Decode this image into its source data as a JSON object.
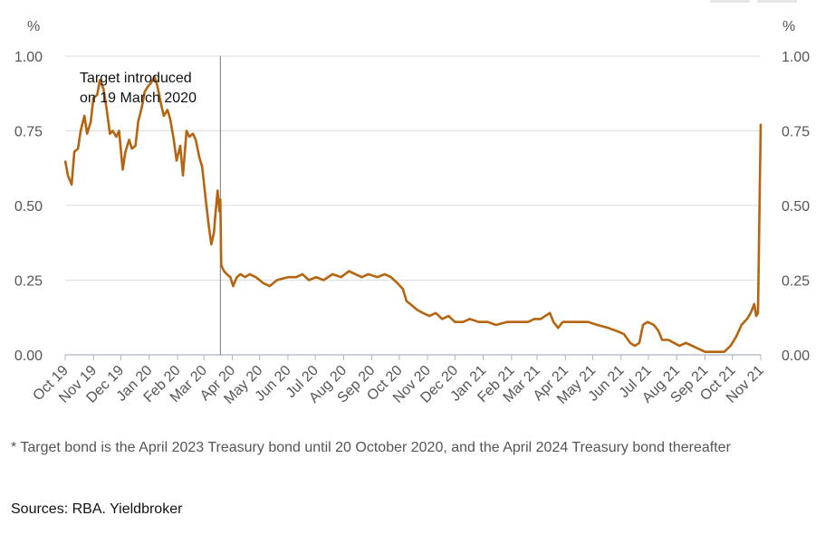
{
  "chart_data": {
    "type": "line",
    "y_unit_left": "%",
    "y_unit_right": "%",
    "ylim": [
      0,
      1.0
    ],
    "y_ticks": [
      "0.00",
      "0.25",
      "0.50",
      "0.75",
      "1.00"
    ],
    "x_ticks": [
      "Oct 19",
      "Nov 19",
      "Dec 19",
      "Jan 20",
      "Feb 20",
      "Mar 20",
      "Apr 20",
      "May 20",
      "Jun 20",
      "Jul 20",
      "Aug 20",
      "Sep 20",
      "Oct 20",
      "Nov 20",
      "Dec 20",
      "Jan 21",
      "Feb 21",
      "Mar 21",
      "Apr 21",
      "May 21",
      "Jun 21",
      "Jul 21",
      "Aug 21",
      "Sep 21",
      "Oct 21",
      "Nov 21"
    ],
    "x_start": "2019-10-01",
    "annotation": {
      "line1": "Target introduced",
      "line2": "on 19 March 2020",
      "date": "2020-03-19"
    },
    "series": [
      {
        "color": "#b5650f",
        "points": [
          [
            "2019-10-01",
            0.65
          ],
          [
            "2019-10-04",
            0.6
          ],
          [
            "2019-10-08",
            0.57
          ],
          [
            "2019-10-11",
            0.68
          ],
          [
            "2019-10-15",
            0.69
          ],
          [
            "2019-10-18",
            0.75
          ],
          [
            "2019-10-22",
            0.8
          ],
          [
            "2019-10-25",
            0.74
          ],
          [
            "2019-10-29",
            0.78
          ],
          [
            "2019-11-01",
            0.86
          ],
          [
            "2019-11-05",
            0.87
          ],
          [
            "2019-11-08",
            0.92
          ],
          [
            "2019-11-12",
            0.89
          ],
          [
            "2019-11-15",
            0.83
          ],
          [
            "2019-11-19",
            0.74
          ],
          [
            "2019-11-22",
            0.75
          ],
          [
            "2019-11-26",
            0.73
          ],
          [
            "2019-11-29",
            0.75
          ],
          [
            "2019-12-03",
            0.62
          ],
          [
            "2019-12-06",
            0.68
          ],
          [
            "2019-12-10",
            0.72
          ],
          [
            "2019-12-13",
            0.69
          ],
          [
            "2019-12-17",
            0.7
          ],
          [
            "2019-12-20",
            0.78
          ],
          [
            "2019-12-24",
            0.83
          ],
          [
            "2019-12-27",
            0.88
          ],
          [
            "2019-12-31",
            0.9
          ],
          [
            "2020-01-03",
            0.91
          ],
          [
            "2020-01-07",
            0.93
          ],
          [
            "2020-01-10",
            0.9
          ],
          [
            "2020-01-14",
            0.84
          ],
          [
            "2020-01-17",
            0.8
          ],
          [
            "2020-01-21",
            0.82
          ],
          [
            "2020-01-24",
            0.79
          ],
          [
            "2020-01-28",
            0.72
          ],
          [
            "2020-01-31",
            0.65
          ],
          [
            "2020-02-04",
            0.7
          ],
          [
            "2020-02-07",
            0.6
          ],
          [
            "2020-02-11",
            0.75
          ],
          [
            "2020-02-14",
            0.73
          ],
          [
            "2020-02-18",
            0.74
          ],
          [
            "2020-02-21",
            0.72
          ],
          [
            "2020-02-25",
            0.66
          ],
          [
            "2020-02-28",
            0.63
          ],
          [
            "2020-03-03",
            0.52
          ],
          [
            "2020-03-06",
            0.44
          ],
          [
            "2020-03-09",
            0.37
          ],
          [
            "2020-03-12",
            0.41
          ],
          [
            "2020-03-13",
            0.45
          ],
          [
            "2020-03-16",
            0.55
          ],
          [
            "2020-03-18",
            0.48
          ],
          [
            "2020-03-19",
            0.52
          ],
          [
            "2020-03-20",
            0.3
          ],
          [
            "2020-03-23",
            0.28
          ],
          [
            "2020-03-26",
            0.27
          ],
          [
            "2020-03-30",
            0.26
          ],
          [
            "2020-04-02",
            0.23
          ],
          [
            "2020-04-06",
            0.26
          ],
          [
            "2020-04-10",
            0.27
          ],
          [
            "2020-04-15",
            0.26
          ],
          [
            "2020-04-20",
            0.27
          ],
          [
            "2020-04-27",
            0.26
          ],
          [
            "2020-05-05",
            0.24
          ],
          [
            "2020-05-12",
            0.23
          ],
          [
            "2020-05-20",
            0.25
          ],
          [
            "2020-06-01",
            0.26
          ],
          [
            "2020-06-10",
            0.26
          ],
          [
            "2020-06-17",
            0.27
          ],
          [
            "2020-06-24",
            0.25
          ],
          [
            "2020-07-02",
            0.26
          ],
          [
            "2020-07-10",
            0.25
          ],
          [
            "2020-07-20",
            0.27
          ],
          [
            "2020-07-29",
            0.26
          ],
          [
            "2020-08-07",
            0.28
          ],
          [
            "2020-08-14",
            0.27
          ],
          [
            "2020-08-21",
            0.26
          ],
          [
            "2020-08-28",
            0.27
          ],
          [
            "2020-09-07",
            0.26
          ],
          [
            "2020-09-15",
            0.27
          ],
          [
            "2020-09-22",
            0.26
          ],
          [
            "2020-09-29",
            0.24
          ],
          [
            "2020-10-05",
            0.22
          ],
          [
            "2020-10-09",
            0.18
          ],
          [
            "2020-10-13",
            0.17
          ],
          [
            "2020-10-17",
            0.16
          ],
          [
            "2020-10-21",
            0.15
          ],
          [
            "2020-10-27",
            0.14
          ],
          [
            "2020-11-03",
            0.13
          ],
          [
            "2020-11-10",
            0.14
          ],
          [
            "2020-11-17",
            0.12
          ],
          [
            "2020-11-24",
            0.13
          ],
          [
            "2020-12-01",
            0.11
          ],
          [
            "2020-12-10",
            0.11
          ],
          [
            "2020-12-17",
            0.12
          ],
          [
            "2020-12-27",
            0.11
          ],
          [
            "2021-01-06",
            0.11
          ],
          [
            "2021-01-15",
            0.1
          ],
          [
            "2021-01-27",
            0.11
          ],
          [
            "2021-02-08",
            0.11
          ],
          [
            "2021-02-19",
            0.11
          ],
          [
            "2021-02-26",
            0.12
          ],
          [
            "2021-03-05",
            0.12
          ],
          [
            "2021-03-10",
            0.13
          ],
          [
            "2021-03-15",
            0.14
          ],
          [
            "2021-03-19",
            0.11
          ],
          [
            "2021-03-24",
            0.09
          ],
          [
            "2021-03-29",
            0.11
          ],
          [
            "2021-04-05",
            0.11
          ],
          [
            "2021-04-15",
            0.11
          ],
          [
            "2021-04-26",
            0.11
          ],
          [
            "2021-05-06",
            0.1
          ],
          [
            "2021-05-18",
            0.09
          ],
          [
            "2021-05-27",
            0.08
          ],
          [
            "2021-06-04",
            0.07
          ],
          [
            "2021-06-11",
            0.04
          ],
          [
            "2021-06-16",
            0.03
          ],
          [
            "2021-06-21",
            0.04
          ],
          [
            "2021-06-25",
            0.1
          ],
          [
            "2021-06-30",
            0.11
          ],
          [
            "2021-07-07",
            0.1
          ],
          [
            "2021-07-12",
            0.08
          ],
          [
            "2021-07-16",
            0.05
          ],
          [
            "2021-07-23",
            0.05
          ],
          [
            "2021-07-29",
            0.04
          ],
          [
            "2021-08-04",
            0.03
          ],
          [
            "2021-08-11",
            0.04
          ],
          [
            "2021-08-18",
            0.03
          ],
          [
            "2021-08-25",
            0.02
          ],
          [
            "2021-09-01",
            0.01
          ],
          [
            "2021-09-08",
            0.01
          ],
          [
            "2021-09-15",
            0.01
          ],
          [
            "2021-09-22",
            0.01
          ],
          [
            "2021-09-29",
            0.03
          ],
          [
            "2021-10-05",
            0.06
          ],
          [
            "2021-10-11",
            0.1
          ],
          [
            "2021-10-17",
            0.12
          ],
          [
            "2021-10-21",
            0.14
          ],
          [
            "2021-10-25",
            0.17
          ],
          [
            "2021-10-27",
            0.13
          ],
          [
            "2021-10-29",
            0.14
          ],
          [
            "2021-11-01",
            0.77
          ],
          [
            "2021-11-02",
            0.77
          ]
        ]
      }
    ]
  },
  "footnote": "* Target bond is the April 2023 Treasury bond until 20 October 2020, and the April 2024 Treasury bond thereafter",
  "sources": "Sources: RBA. Yieldbroker"
}
